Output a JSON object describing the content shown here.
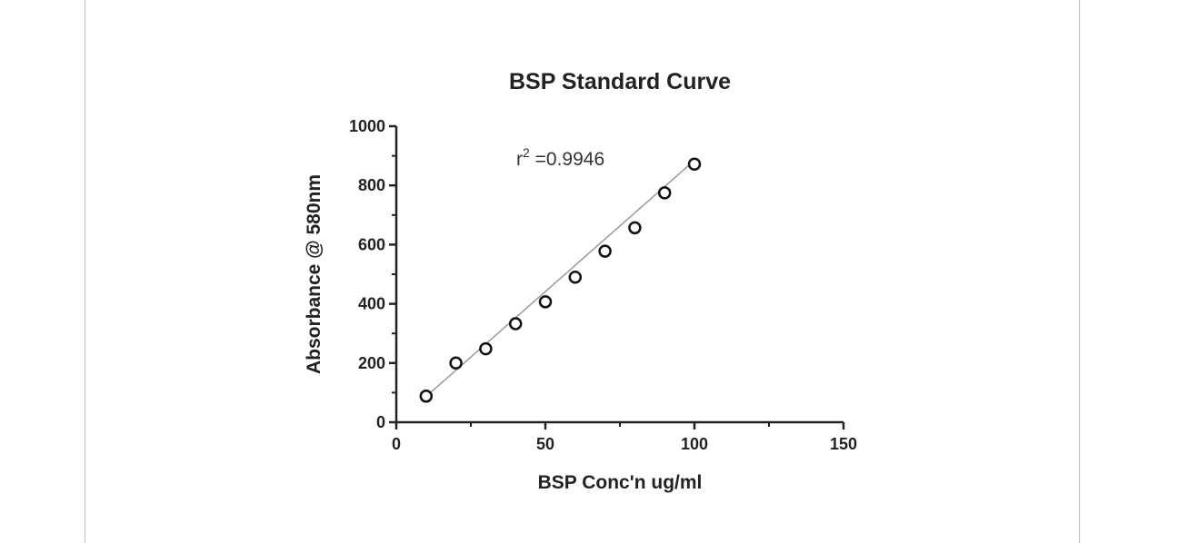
{
  "chart_data": {
    "type": "scatter",
    "title": "BSP Standard Curve",
    "xlabel": "BSP Conc'n ug/ml",
    "ylabel": "Absorbance @ 580nm",
    "xlim": [
      0,
      150
    ],
    "ylim": [
      0,
      1000
    ],
    "x_ticks": [
      "0",
      "50",
      "100",
      "150"
    ],
    "y_ticks": [
      "0",
      "200",
      "400",
      "600",
      "800",
      "1000"
    ],
    "grid": false,
    "annotation": {
      "base": "r",
      "exponent": "2",
      "text": " =0.9946"
    },
    "fit_line": {
      "x_start": 10,
      "x_end": 100,
      "slope": 8.86,
      "intercept": -1.5
    },
    "series": [
      {
        "x": [
          10,
          20,
          30,
          40,
          50,
          60,
          70,
          80,
          90,
          100
        ],
        "y": [
          88,
          200,
          248,
          333,
          407,
          490,
          578,
          657,
          775,
          872
        ]
      }
    ]
  }
}
